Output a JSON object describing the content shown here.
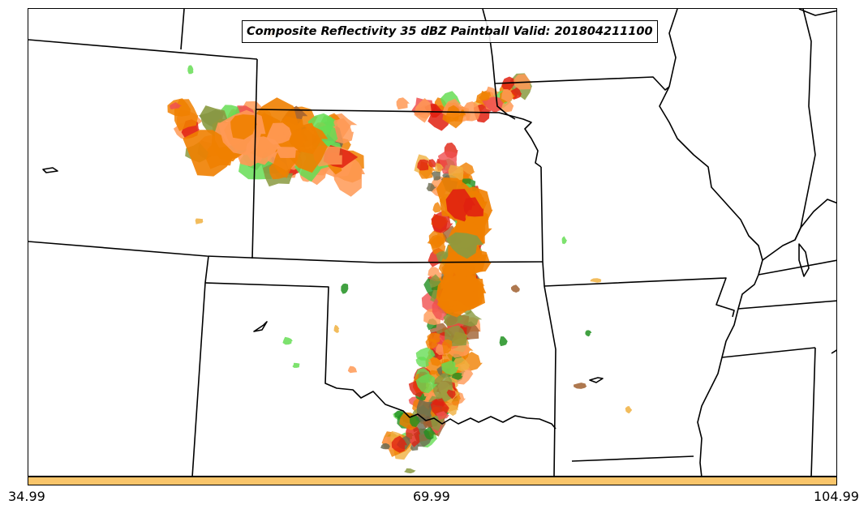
{
  "title": "Composite Reflectivity 35 dBZ Paintball Valid: 201804211100",
  "colorbar": {
    "color": "#f9c56a",
    "ticks": [
      "34.99",
      "69.99",
      "104.99"
    ]
  },
  "paint_colors": [
    "#f08000",
    "#ff9955",
    "#e02010",
    "#f05050",
    "#66dd55",
    "#209020",
    "#6a6a50",
    "#8a9a40",
    "#a06030",
    "#f0b040"
  ],
  "boundary_color": "#000000"
}
